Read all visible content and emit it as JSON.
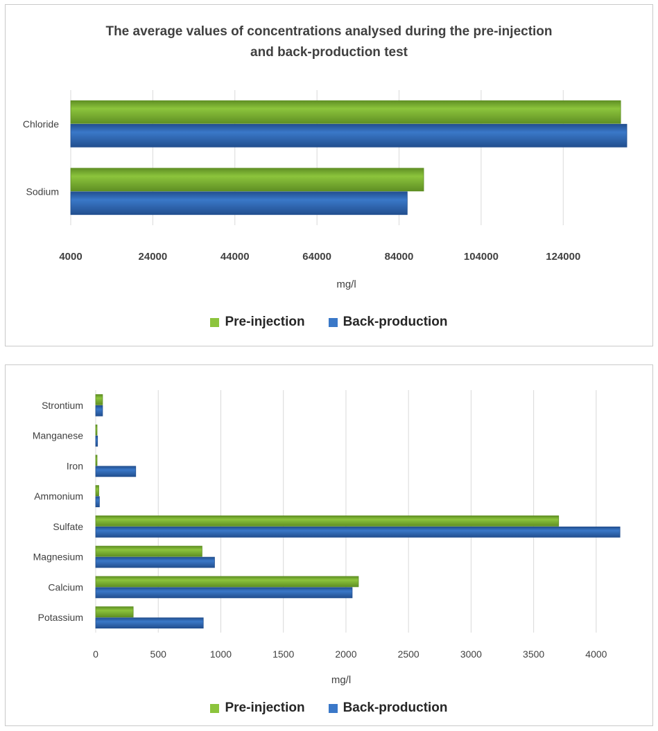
{
  "colors": {
    "pre": "#8cc43c",
    "pre_edge": "#5f8f24",
    "back": "#3a78c8",
    "back_edge": "#224f8f",
    "grid": "#d9d9d9"
  },
  "chart_data": [
    {
      "type": "bar",
      "orientation": "horizontal",
      "title_line1": "The average values of concentrations analysed during the pre-injection",
      "title_line2": "and back-production test",
      "xlabel": "mg/l",
      "xlim": [
        4000,
        140000
      ],
      "ticks": [
        4000,
        24000,
        44000,
        64000,
        84000,
        104000,
        124000
      ],
      "grid": true,
      "legend": "bottom",
      "categories": [
        "Chloride",
        "Sodium"
      ],
      "series": [
        {
          "name": "Pre-injection",
          "values": [
            138000,
            90000
          ]
        },
        {
          "name": "Back-production",
          "values": [
            139500,
            86000
          ]
        }
      ]
    },
    {
      "type": "bar",
      "orientation": "horizontal",
      "xlabel": "mg/l",
      "xlim": [
        0,
        4300
      ],
      "ticks": [
        0,
        500,
        1000,
        1500,
        2000,
        2500,
        3000,
        3500,
        4000
      ],
      "grid": true,
      "legend": "bottom",
      "categories": [
        "Strontium",
        "Manganese",
        "Iron",
        "Ammonium",
        "Sulfate",
        "Magnesium",
        "Calcium",
        "Potassium"
      ],
      "series": [
        {
          "name": "Pre-injection",
          "values": [
            55,
            10,
            10,
            25,
            3700,
            850,
            2100,
            300
          ]
        },
        {
          "name": "Back-production",
          "values": [
            55,
            15,
            320,
            30,
            4190,
            950,
            2050,
            860
          ]
        }
      ]
    }
  ]
}
